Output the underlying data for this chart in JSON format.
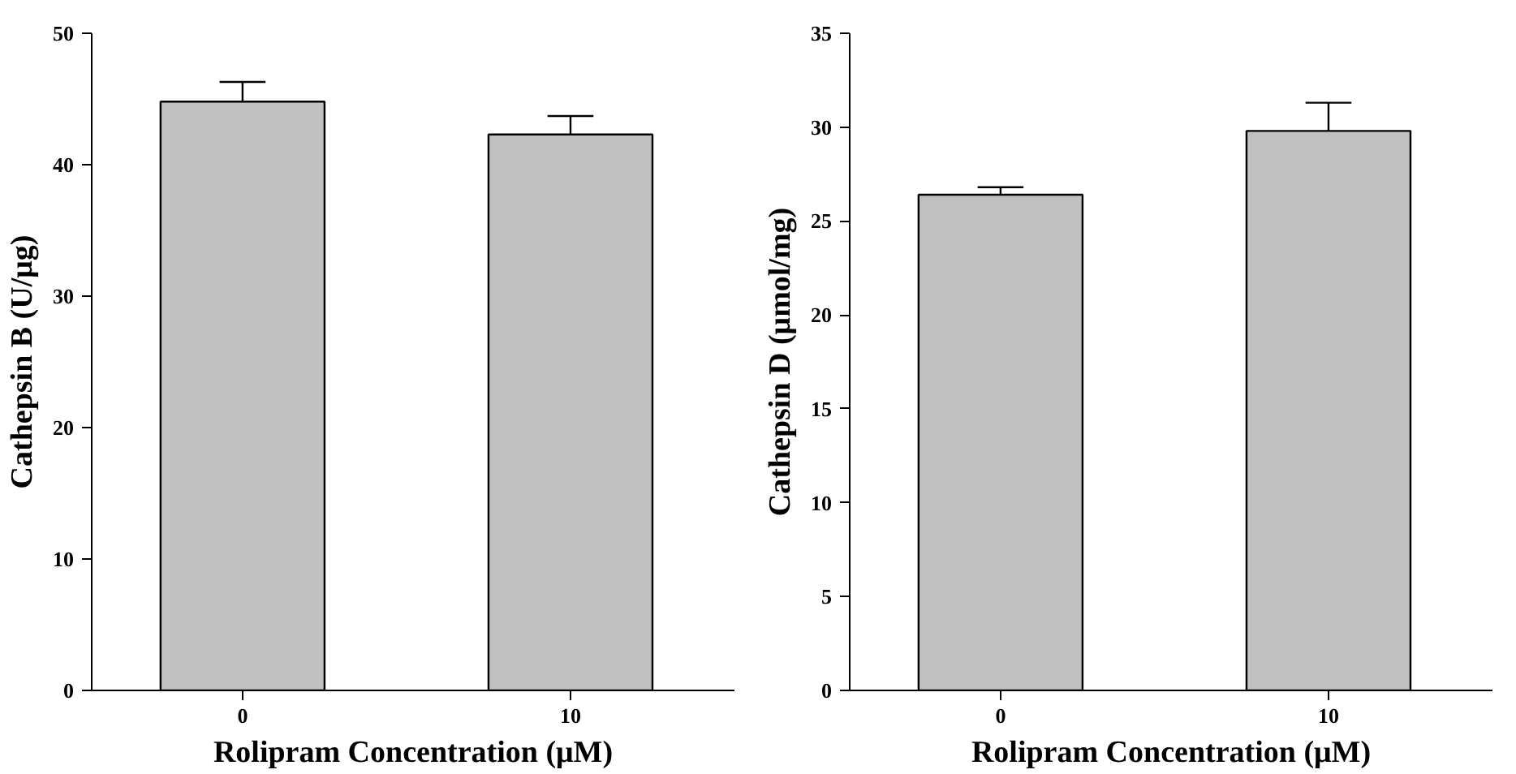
{
  "chart_data": [
    {
      "type": "bar",
      "categories": [
        "0",
        "10"
      ],
      "values": [
        44.8,
        42.3
      ],
      "errors": [
        [
          44.8,
          46.3
        ],
        [
          42.3,
          43.7
        ]
      ],
      "color": "#c0c0c0",
      "xlabel": "Rolipram Concentration (μM)",
      "ylabel": "Cathepsin B (U/μg)",
      "ylim": [
        0,
        50
      ],
      "yticks": [
        0,
        10,
        20,
        30,
        40,
        50
      ],
      "grid": false
    },
    {
      "type": "bar",
      "categories": [
        "0",
        "10"
      ],
      "values": [
        26.4,
        29.8
      ],
      "errors": [
        [
          26.4,
          26.8
        ],
        [
          29.8,
          31.3
        ]
      ],
      "color": "#c0c0c0",
      "xlabel": "Rolipram Concentration (μM)",
      "ylabel": "Cathepsin D (μmol/mg)",
      "ylim": [
        0,
        35
      ],
      "yticks": [
        0,
        5,
        10,
        15,
        20,
        25,
        30,
        35
      ],
      "grid": false
    }
  ]
}
